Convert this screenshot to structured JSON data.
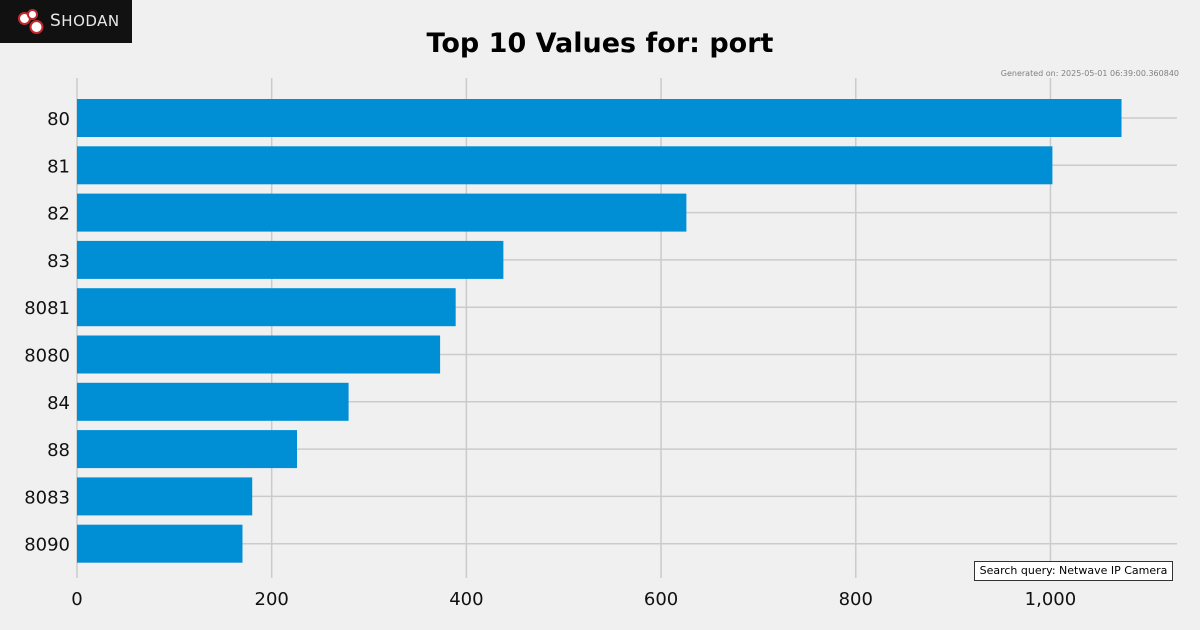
{
  "logo": {
    "text": "Shodan"
  },
  "generated": "Generated on: 2025-05-01 06:39:00.360840",
  "search_query": "Search query: Netwave IP Camera",
  "colors": {
    "bar": "#008fd5",
    "grid": "#cbcbcb",
    "background": "#f0f0f0"
  },
  "chart_data": {
    "type": "bar",
    "orientation": "horizontal",
    "title": "Top 10 Values for: port",
    "categories": [
      "80",
      "81",
      "82",
      "83",
      "8081",
      "8080",
      "84",
      "88",
      "8083",
      "8090"
    ],
    "values": [
      1073,
      1002,
      626,
      438,
      389,
      373,
      279,
      226,
      180,
      170
    ],
    "xlim": [
      0,
      1130
    ],
    "xticks": [
      0,
      200,
      400,
      600,
      800,
      1000
    ],
    "xtick_labels": [
      "0",
      "200",
      "400",
      "600",
      "800",
      "1,000"
    ],
    "grid": true
  }
}
